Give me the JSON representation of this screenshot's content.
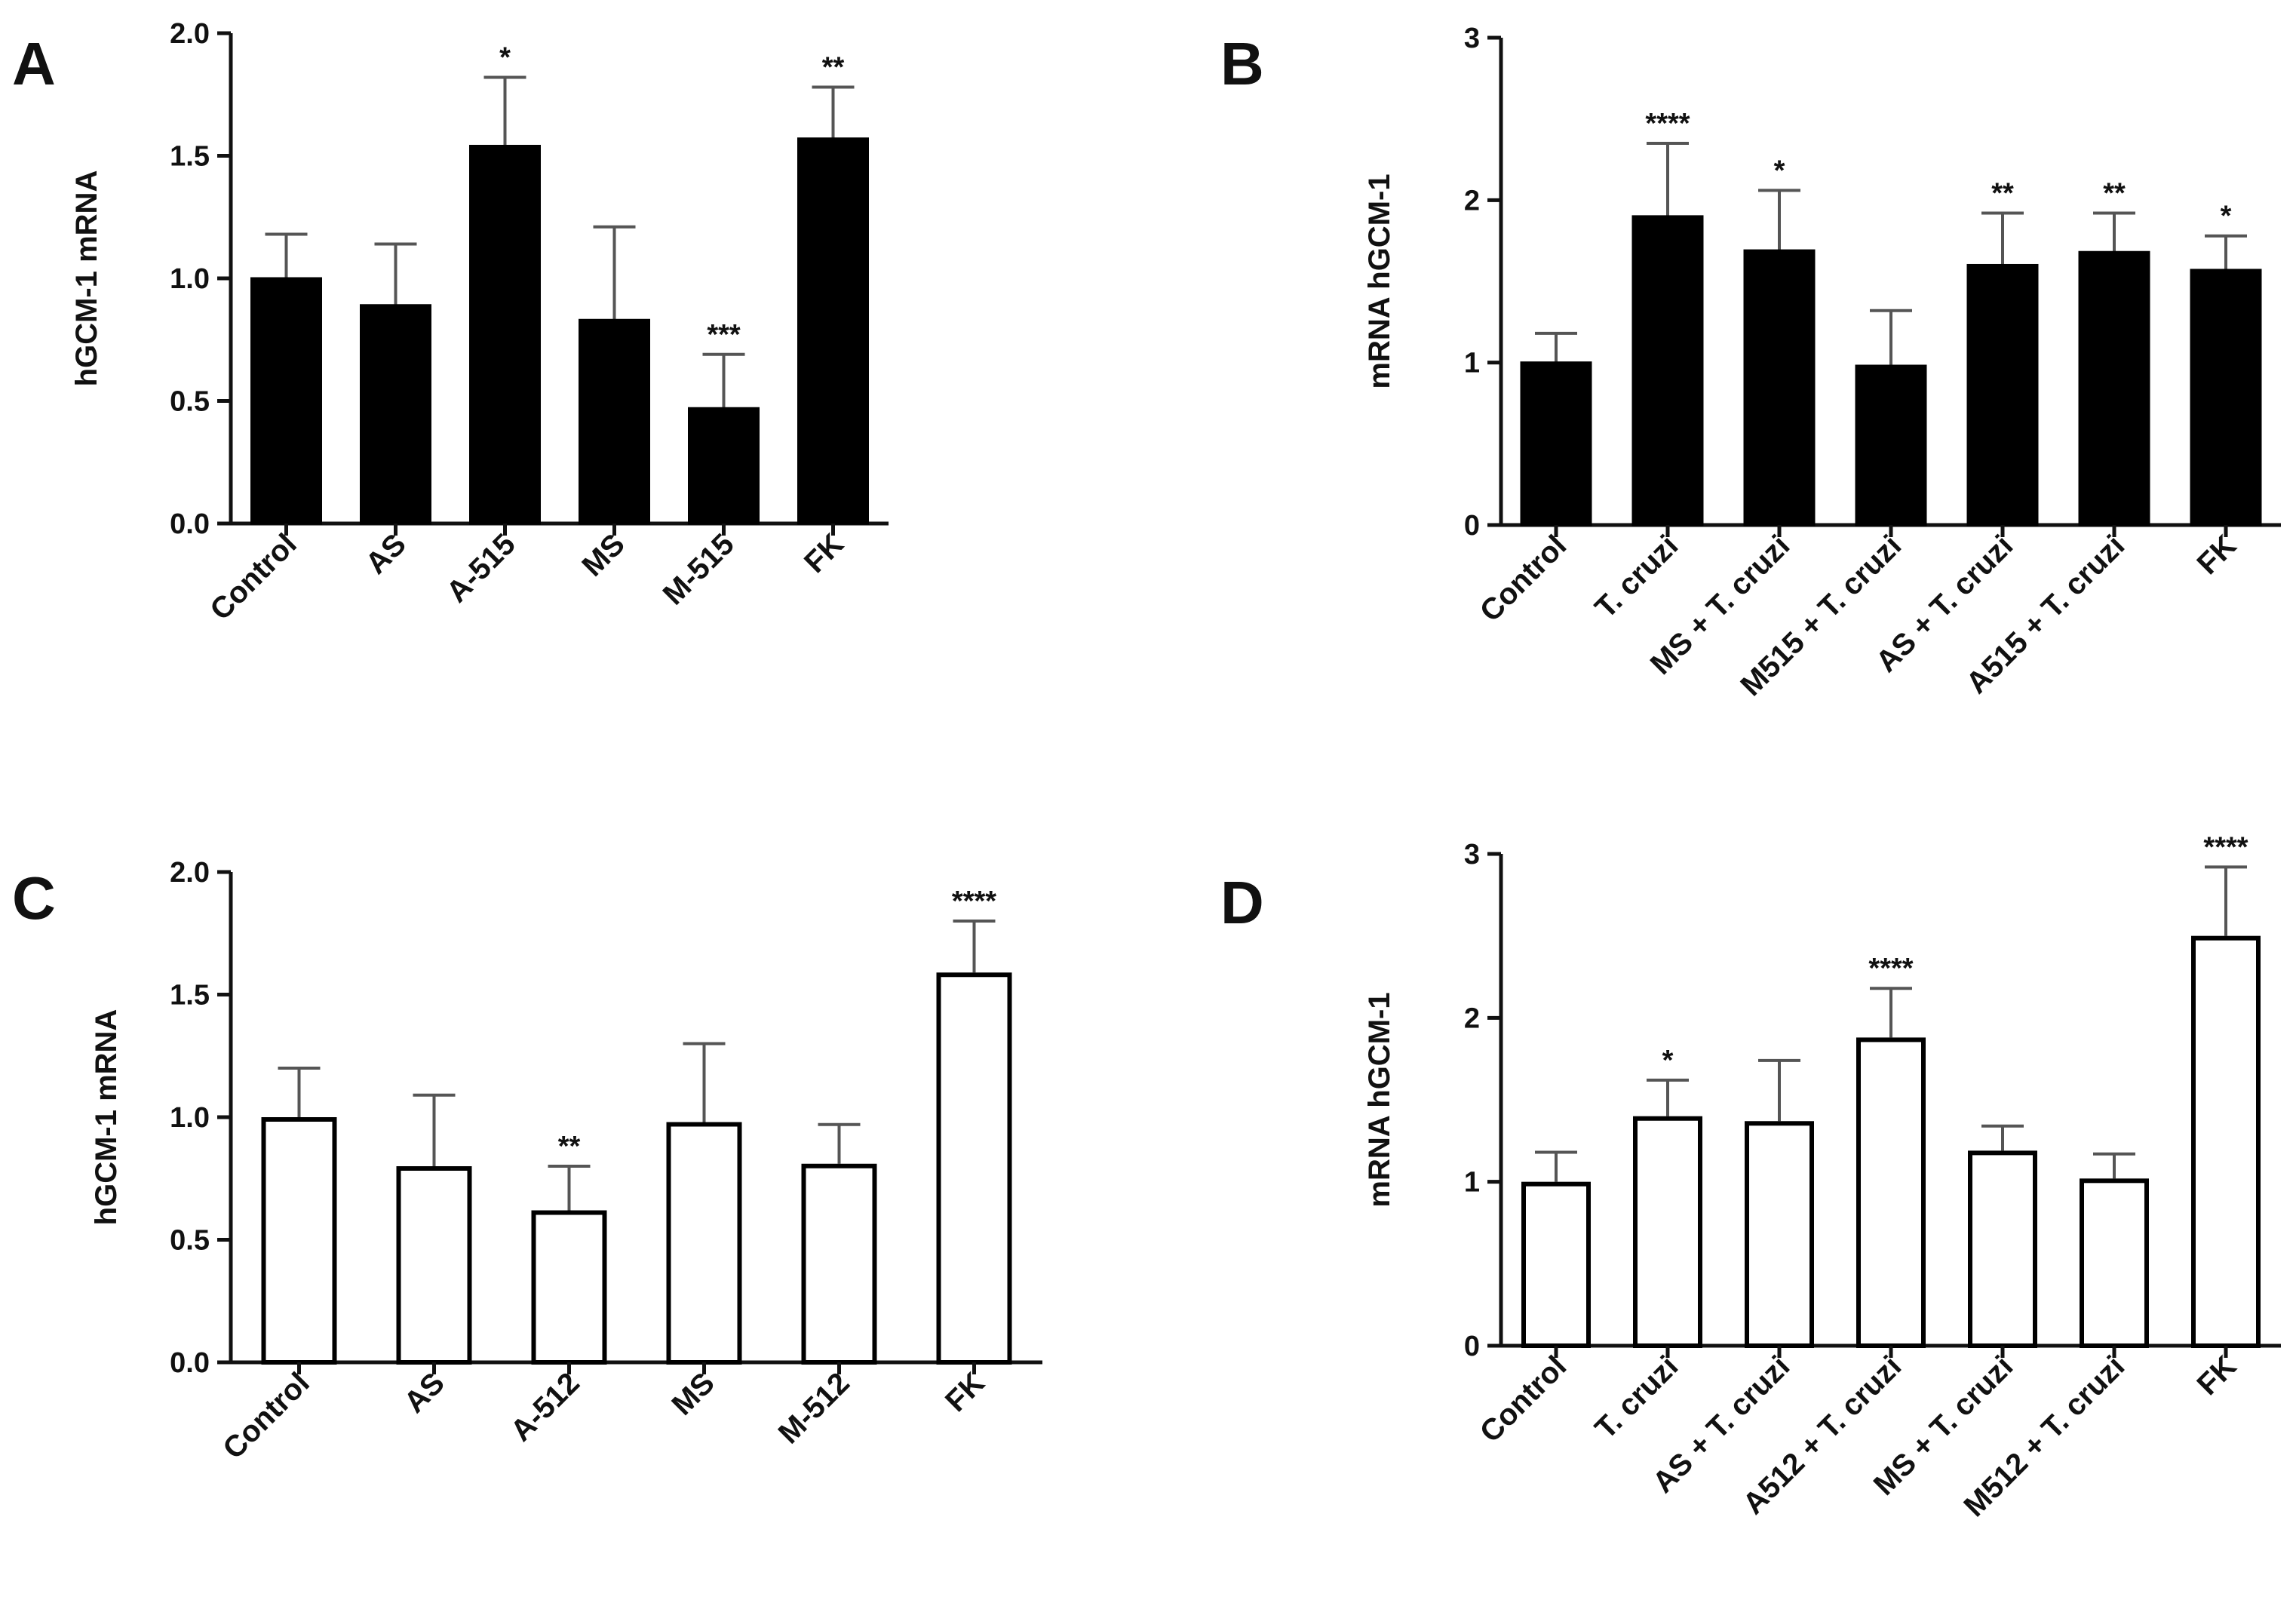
{
  "figure": {
    "panels": [
      "A",
      "B",
      "C",
      "D"
    ]
  },
  "chart_data": [
    {
      "panel": "A",
      "type": "bar",
      "fill": "solid",
      "title": "",
      "xlabel": "",
      "ylabel": "hGCM-1 mRNA",
      "ylim": [
        0,
        2.0
      ],
      "yticks": [
        "0.0",
        "0.5",
        "1.0",
        "1.5",
        "2.0"
      ],
      "categories": [
        "Control",
        "AS",
        "A-515",
        "MS",
        "M-515",
        "FK"
      ],
      "values": [
        1.0,
        0.89,
        1.54,
        0.83,
        0.47,
        1.57
      ],
      "errors": [
        0.18,
        0.25,
        0.28,
        0.38,
        0.22,
        0.21
      ],
      "significance": [
        "",
        "",
        "*",
        "",
        "***",
        "**"
      ],
      "bar_color": "#000000"
    },
    {
      "panel": "B",
      "type": "bar",
      "fill": "solid",
      "title": "",
      "xlabel": "",
      "ylabel": "mRNA hGCM-1",
      "ylim": [
        0,
        3
      ],
      "yticks": [
        "0",
        "1",
        "2",
        "3"
      ],
      "categories": [
        "Control",
        "T. cruzi",
        "MS + T. cruzi",
        "M515 + T. cruzi",
        "AS + T. cruzi",
        "A515 + T. cruzi",
        "FK"
      ],
      "values": [
        1.0,
        1.9,
        1.69,
        0.98,
        1.6,
        1.68,
        1.57
      ],
      "errors": [
        0.18,
        0.45,
        0.37,
        0.34,
        0.32,
        0.24,
        0.21
      ],
      "significance": [
        "",
        "****",
        "*",
        "",
        "**",
        "**",
        "*"
      ],
      "bar_color": "#000000"
    },
    {
      "panel": "C",
      "type": "bar",
      "fill": "open",
      "title": "",
      "xlabel": "",
      "ylabel": "hGCM-1 mRNA",
      "ylim": [
        0,
        2.0
      ],
      "yticks": [
        "0.0",
        "0.5",
        "1.0",
        "1.5",
        "2.0"
      ],
      "categories": [
        "Control",
        "AS",
        "A-512",
        "MS",
        "M-512",
        "FK"
      ],
      "values": [
        1.0,
        0.8,
        0.62,
        0.98,
        0.81,
        1.59
      ],
      "errors": [
        0.2,
        0.29,
        0.18,
        0.32,
        0.16,
        0.21
      ],
      "significance": [
        "",
        "",
        "**",
        "",
        "",
        "****"
      ],
      "bar_color": "#ffffff"
    },
    {
      "panel": "D",
      "type": "bar",
      "fill": "open",
      "title": "",
      "xlabel": "",
      "ylabel": "mRNA hGCM-1",
      "ylim": [
        0,
        3
      ],
      "yticks": [
        "0",
        "1",
        "2",
        "3"
      ],
      "categories": [
        "Control",
        "T. cruzi",
        "AS + T. cruzi",
        "A512 + T. cruzi",
        "MS + T. cruzi",
        "M512 + T. cruzi",
        "FK"
      ],
      "values": [
        1.0,
        1.4,
        1.37,
        1.88,
        1.19,
        1.02,
        2.5
      ],
      "errors": [
        0.18,
        0.22,
        0.37,
        0.3,
        0.15,
        0.15,
        0.42
      ],
      "significance": [
        "",
        "*",
        "",
        "****",
        "",
        "",
        "****"
      ],
      "bar_color": "#ffffff"
    }
  ]
}
